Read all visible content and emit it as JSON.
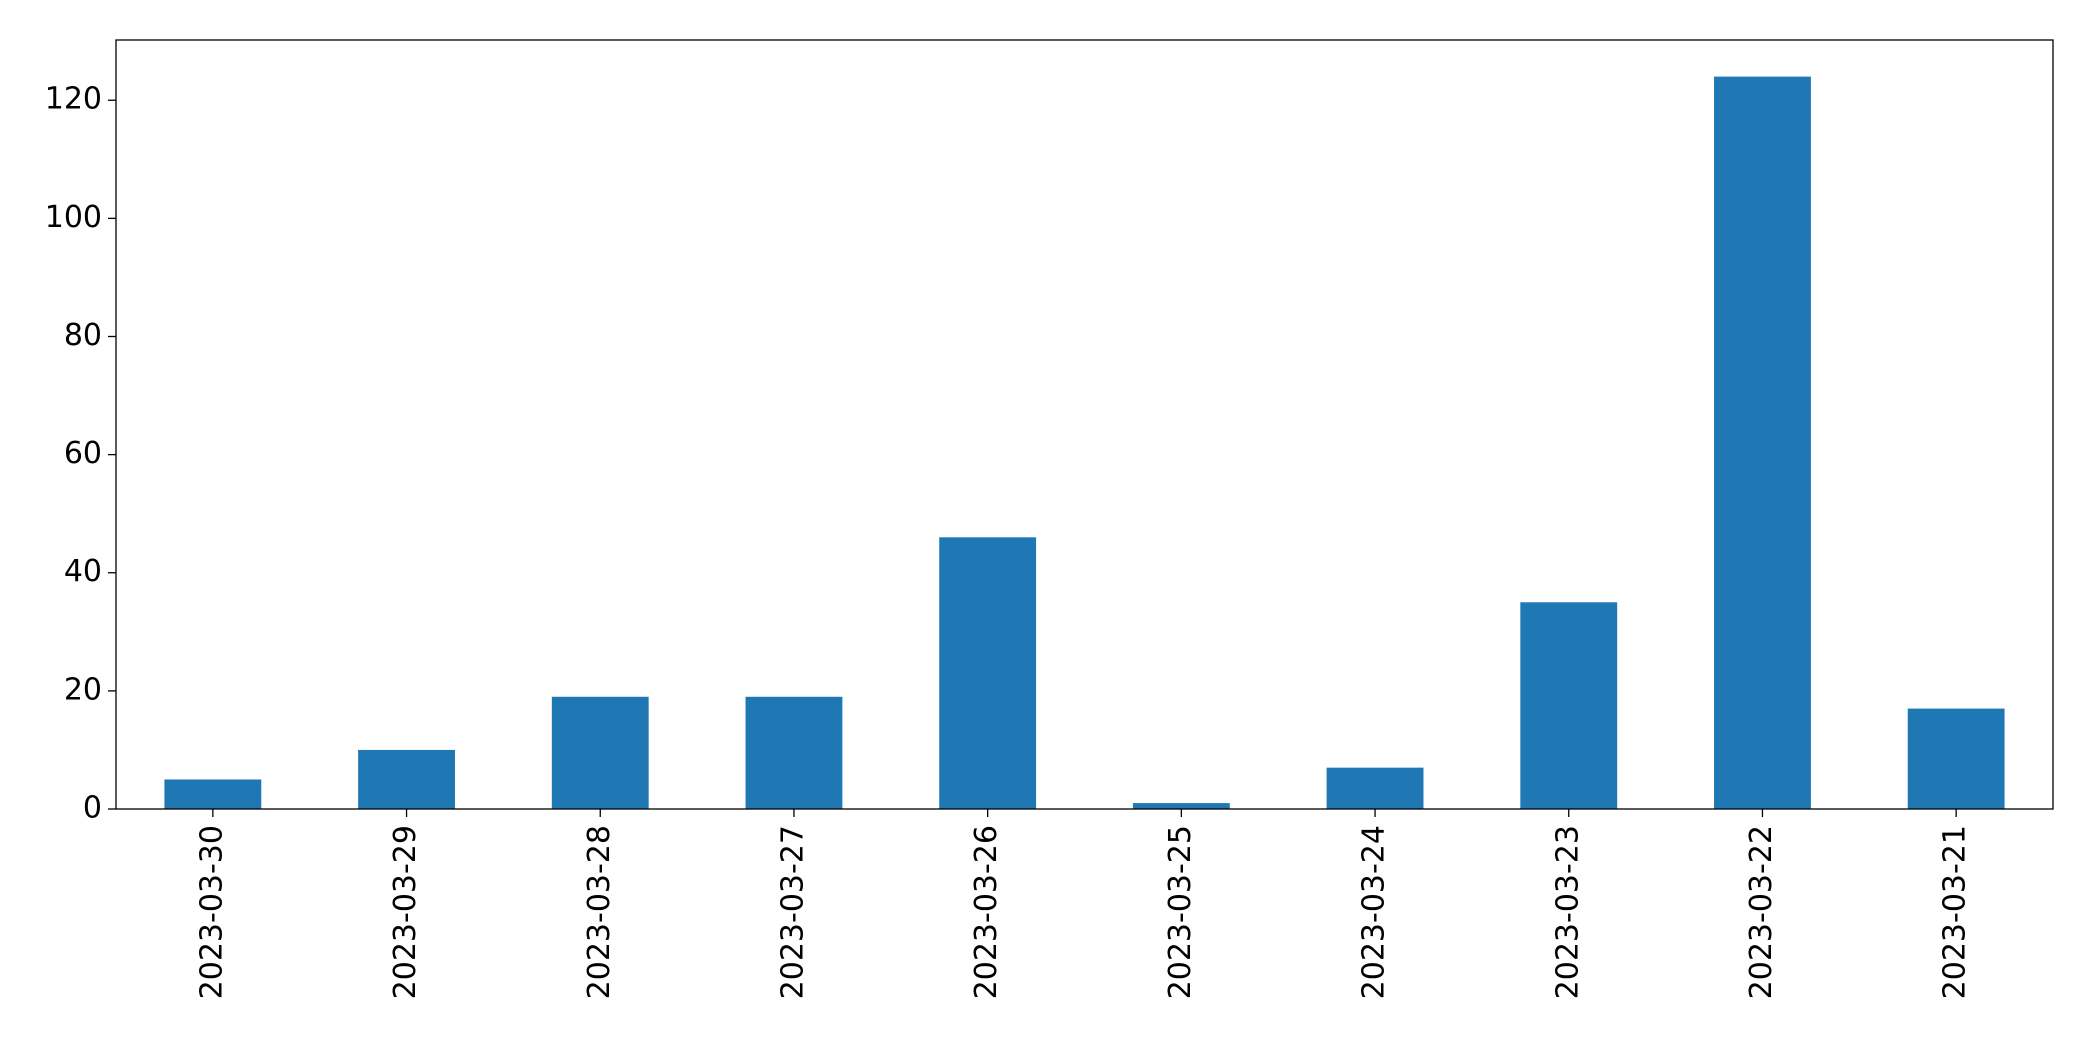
{
  "chart_data": {
    "type": "bar",
    "categories": [
      "2023-03-30",
      "2023-03-29",
      "2023-03-28",
      "2023-03-27",
      "2023-03-26",
      "2023-03-25",
      "2023-03-24",
      "2023-03-23",
      "2023-03-22",
      "2023-03-21"
    ],
    "values": [
      5,
      10,
      19,
      19,
      46,
      1,
      7,
      35,
      124,
      17
    ],
    "color": "#1f77b4",
    "ylim": [
      0,
      130.2
    ],
    "yticks": [
      0,
      20,
      40,
      60,
      80,
      100,
      120
    ],
    "grid": false
  }
}
